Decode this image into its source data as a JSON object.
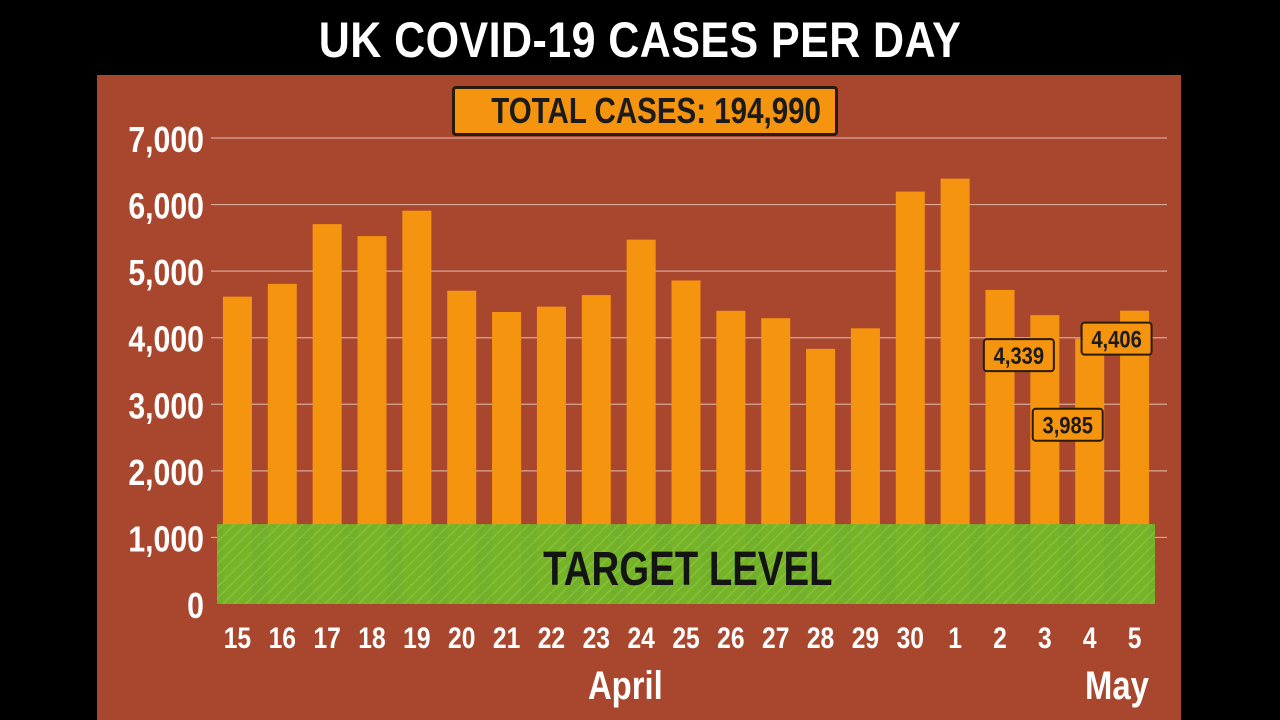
{
  "title": "UK COVID-19 CASES PER DAY",
  "total_cases": "TOTAL CASES: 194,990",
  "target_label": "TARGET LEVEL",
  "months": [
    "April",
    "May"
  ],
  "colors": {
    "background": "#a8472e",
    "bar": "#f5950f",
    "target_band": "#6fb52a",
    "text": "#ffffff",
    "label_box": "#f5950f"
  },
  "chart_data": {
    "type": "bar",
    "title": "UK COVID-19 CASES PER DAY",
    "categories": [
      "15",
      "16",
      "17",
      "18",
      "19",
      "20",
      "21",
      "22",
      "23",
      "24",
      "25",
      "26",
      "27",
      "28",
      "29",
      "30",
      "1",
      "2",
      "3",
      "4",
      "5"
    ],
    "values": [
      4617,
      4809,
      5706,
      5526,
      5908,
      4706,
      4386,
      4467,
      4640,
      5473,
      4860,
      4404,
      4293,
      3833,
      4141,
      6195,
      6390,
      4718,
      4339,
      3985,
      4406
    ],
    "data_labels": [
      {
        "category": "3",
        "text": "4,339"
      },
      {
        "category": "4",
        "text": "3,985"
      },
      {
        "category": "5",
        "text": "4,406"
      }
    ],
    "ylim": [
      0,
      7000
    ],
    "yticks": [
      "0",
      "1,000",
      "2,000",
      "3,000",
      "4,000",
      "5,000",
      "6,000",
      "7,000"
    ],
    "target_level": 1200,
    "grid": true,
    "xlabel": "",
    "ylabel": ""
  }
}
